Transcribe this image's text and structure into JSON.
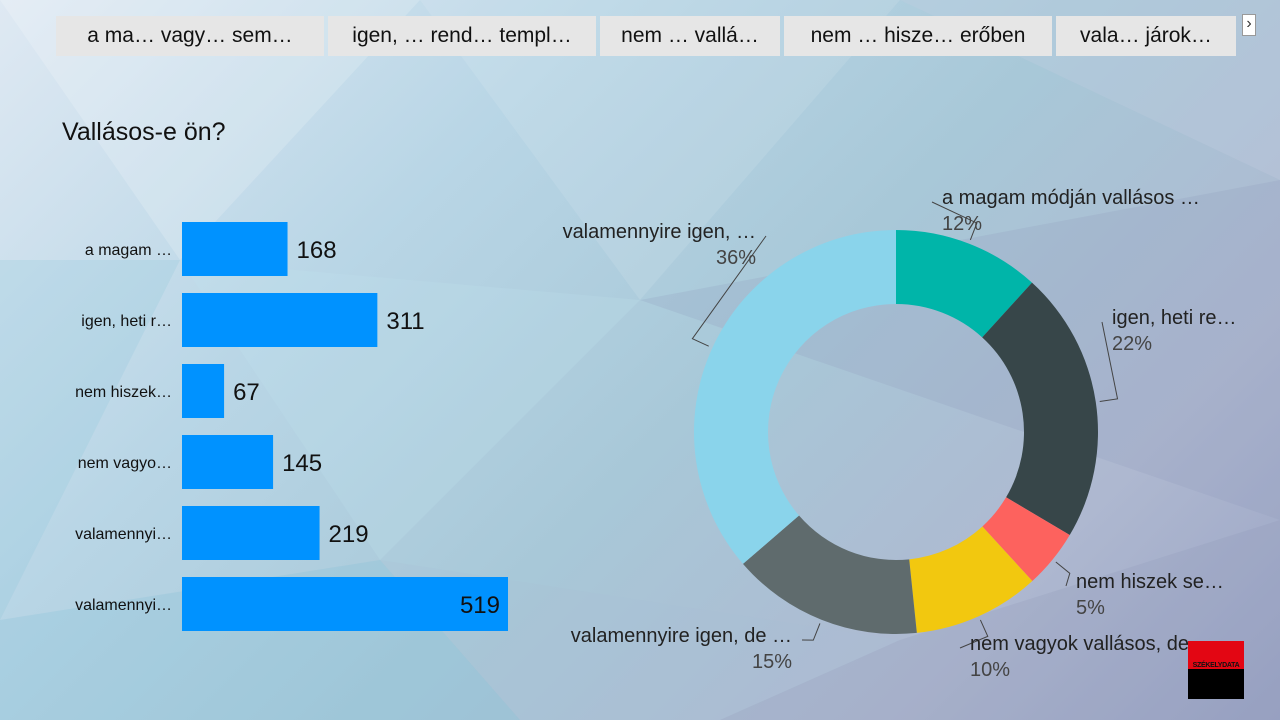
{
  "filters": [
    "a ma…  vagy…   sem…",
    "igen, …  rend…  templ…",
    "nem …  vallá…",
    "nem …  hisze…  erőben",
    "vala…  járok…"
  ],
  "next_icon": "chevron-right-icon",
  "title": "Vallásos-e ön?",
  "logo_text": "SZÉKELYDATA",
  "colors": {
    "bar": "#0092ff",
    "slices": [
      "#00b5a9",
      "#374649",
      "#fd625e",
      "#f2c80f",
      "#5f6b6d",
      "#8ad4eb"
    ]
  },
  "chart_data": [
    {
      "type": "bar",
      "orientation": "horizontal",
      "categories": [
        "a magam …",
        "igen, heti r…",
        "nem hiszek…",
        "nem vagyo…",
        "valamennyi…",
        "valamennyi…"
      ],
      "values": [
        168,
        311,
        67,
        145,
        219,
        519
      ],
      "value_labels": [
        "168",
        "311",
        "67",
        "145",
        "219",
        "519"
      ],
      "xlim": [
        0,
        519
      ]
    },
    {
      "type": "pie",
      "variant": "donut",
      "labels": [
        "a magam módján vallásos …",
        "igen, heti re…",
        "nem hiszek se…",
        "nem vagyok vallásos, de…",
        "valamennyire igen, de …",
        "valamennyire igen, …"
      ],
      "values": [
        168,
        311,
        67,
        145,
        219,
        519
      ],
      "percent_labels": [
        "12%",
        "22%",
        "5%",
        "10%",
        "15%",
        "36%"
      ]
    }
  ]
}
